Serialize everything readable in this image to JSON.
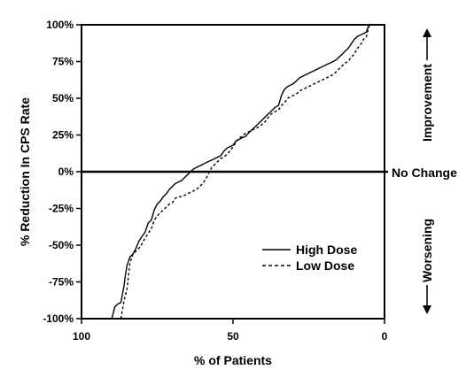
{
  "chart_data": {
    "type": "line",
    "title": "",
    "xlabel": "% of Patients",
    "ylabel": "% Reduction In CPS Rate",
    "xlim": [
      100,
      0
    ],
    "ylim": [
      -100,
      100
    ],
    "x_reversed": true,
    "x_ticks": [
      100,
      50,
      0
    ],
    "x_tick_labels": [
      "100",
      "50",
      "0"
    ],
    "y_ticks": [
      100,
      75,
      50,
      25,
      0,
      -25,
      -50,
      -75,
      -100
    ],
    "y_tick_labels": [
      "100%",
      "75%",
      "50%",
      "25%",
      "0%",
      "-25%",
      "-50%",
      "-75%",
      "-100%"
    ],
    "grid": false,
    "legend_position": "bottom-right",
    "reference_line": {
      "y": 0,
      "label": "No Change"
    },
    "annotations": {
      "improvement": "Improvement",
      "worsening": "Worsening"
    },
    "series": [
      {
        "name": "High Dose",
        "style": "solid",
        "x": [
          90,
          89,
          88,
          87,
          86,
          85.5,
          85,
          84,
          83,
          82,
          81,
          80,
          79,
          78,
          77,
          76,
          75,
          74,
          73,
          72,
          71,
          70,
          69,
          68,
          67,
          66,
          65,
          64,
          63,
          62,
          61,
          60,
          59,
          58,
          57,
          56,
          55,
          54,
          53,
          52,
          51,
          50,
          49,
          48,
          47,
          46,
          45,
          44,
          43,
          42,
          41,
          40,
          39,
          38,
          37,
          36,
          35,
          34,
          33,
          32,
          31,
          30,
          29,
          28,
          27,
          26,
          25,
          24,
          23,
          22,
          21,
          20,
          19,
          18,
          17,
          16,
          15,
          14,
          13,
          12,
          11,
          10,
          9,
          8,
          7,
          6,
          5.5,
          5
        ],
        "y": [
          -100,
          -92,
          -90,
          -89,
          -78,
          -70,
          -64,
          -58,
          -56,
          -52,
          -47,
          -44,
          -41,
          -35,
          -33,
          -26,
          -22,
          -20,
          -17,
          -15,
          -12,
          -10,
          -8,
          -7,
          -6,
          -4,
          -2,
          0,
          2,
          3,
          4,
          5,
          6,
          7,
          8,
          9,
          10,
          11,
          14,
          16,
          17,
          18,
          21,
          22,
          23,
          24,
          26,
          28,
          30,
          32,
          34,
          36,
          38,
          40,
          42,
          44,
          45,
          52,
          56,
          58,
          59,
          60,
          62,
          64,
          65,
          66,
          67,
          68,
          69,
          70,
          71,
          72,
          73,
          74,
          75,
          76,
          78,
          80,
          82,
          84,
          87,
          90,
          92,
          93,
          94,
          95,
          98,
          100
        ]
      },
      {
        "name": "Low Dose",
        "style": "dashed",
        "x": [
          87,
          86,
          85,
          84,
          83,
          82,
          81,
          80,
          79,
          78,
          77,
          76,
          75,
          74,
          73,
          72,
          71,
          70,
          69,
          68,
          67,
          66,
          65,
          64,
          63,
          62,
          61,
          60,
          59,
          58,
          57,
          56,
          55,
          54,
          53,
          52,
          51,
          50,
          49,
          48,
          47,
          46,
          45,
          44,
          43,
          42,
          41,
          40,
          39,
          38,
          37,
          36,
          35,
          34,
          33,
          32,
          31,
          30,
          29,
          28,
          27,
          26,
          25,
          24,
          23,
          22,
          21,
          20,
          19,
          18,
          17,
          16,
          15,
          14,
          13,
          12,
          11,
          10,
          9,
          8,
          7,
          6,
          5.5,
          5
        ],
        "y": [
          -100,
          -88,
          -80,
          -62,
          -56,
          -54,
          -52,
          -49,
          -45,
          -42,
          -39,
          -33,
          -30,
          -28,
          -26,
          -24,
          -22,
          -21,
          -18,
          -17,
          -17,
          -16,
          -15,
          -14,
          -13,
          -12,
          -10,
          -8,
          -5,
          -1,
          3,
          5,
          7,
          9,
          10,
          12,
          14,
          17,
          20,
          23,
          24,
          26,
          27,
          28,
          29,
          30,
          31,
          33,
          35,
          38,
          40,
          41,
          42,
          45,
          47,
          50,
          51,
          52,
          53,
          55,
          56,
          57,
          58,
          59,
          60,
          61,
          62,
          63,
          64,
          65,
          66,
          68,
          70,
          72,
          74,
          75,
          78,
          80,
          84,
          86,
          90,
          92,
          96,
          100
        ]
      }
    ]
  }
}
